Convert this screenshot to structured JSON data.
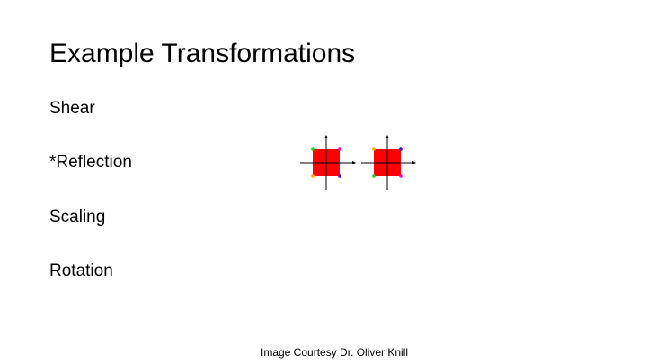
{
  "slide": {
    "title": "Example Transformations",
    "bullets": [
      "Shear",
      "*Reflection",
      "Scaling",
      "Rotation"
    ],
    "caption": "Image Courtesy  Dr. Oliver Knill"
  },
  "figure": {
    "square_color": "#ff0000",
    "axis_color": "#000000",
    "corner_colors": {
      "green": "#22cc22",
      "magenta": "#ff00cc",
      "orange": "#ffaa00",
      "purple": "#5500aa"
    }
  }
}
